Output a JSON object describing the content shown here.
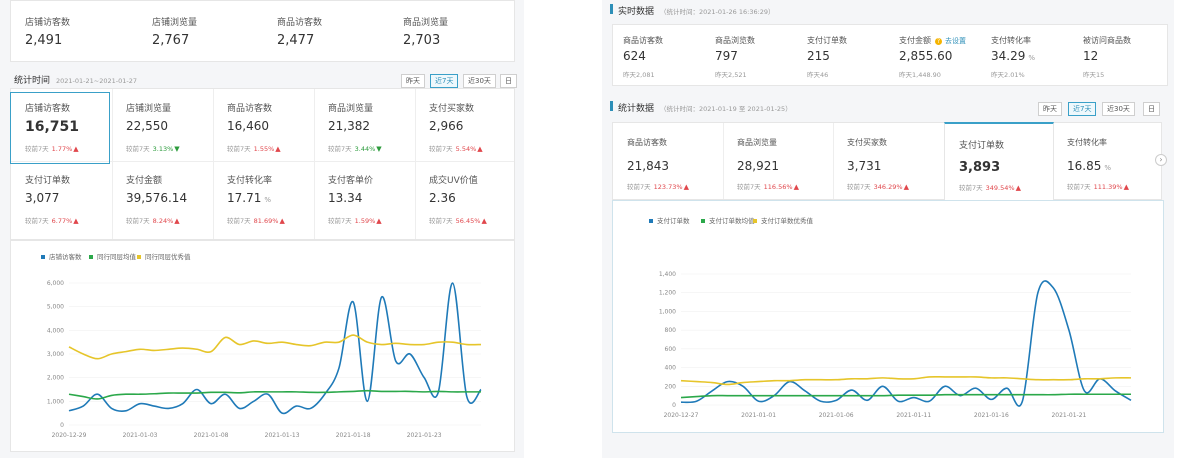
{
  "left": {
    "top_stats": [
      {
        "label": "店铺访客数",
        "value": "2,491"
      },
      {
        "label": "店铺浏览量",
        "value": "2,767"
      },
      {
        "label": "商品访客数",
        "value": "2,477"
      },
      {
        "label": "商品浏览量",
        "value": "2,703"
      }
    ],
    "section_title": "统计时间",
    "section_range": "2021-01-21~2021-01-27",
    "range_buttons": [
      "昨天",
      "近7天",
      "近30天",
      "日"
    ],
    "active_button_index": 1,
    "metrics_row1": [
      {
        "label": "店铺访客数",
        "value": "16,751",
        "compare_label": "较前7天",
        "compare_value": "1.77%",
        "direction": "up"
      },
      {
        "label": "店铺浏览量",
        "value": "22,550",
        "compare_label": "较前7天",
        "compare_value": "3.13%",
        "direction": "down"
      },
      {
        "label": "商品访客数",
        "value": "16,460",
        "compare_label": "较前7天",
        "compare_value": "1.55%",
        "direction": "up"
      },
      {
        "label": "商品浏览量",
        "value": "21,382",
        "compare_label": "较前7天",
        "compare_value": "3.44%",
        "direction": "down"
      },
      {
        "label": "支付买家数",
        "value": "2,966",
        "compare_label": "较前7天",
        "compare_value": "5.54%",
        "direction": "up"
      }
    ],
    "metrics_row2": [
      {
        "label": "支付订单数",
        "value": "3,077",
        "compare_label": "较前7天",
        "compare_value": "6.77%",
        "direction": "up"
      },
      {
        "label": "支付金额",
        "value": "39,576.14",
        "compare_label": "较前7天",
        "compare_value": "8.24%",
        "direction": "up"
      },
      {
        "label": "支付转化率",
        "value": "17.71",
        "unit": "%",
        "compare_label": "较前7天",
        "compare_value": "81.69%",
        "direction": "up"
      },
      {
        "label": "支付客单价",
        "value": "13.34",
        "compare_label": "较前7天",
        "compare_value": "1.59%",
        "direction": "up"
      },
      {
        "label": "成交UV价值",
        "value": "2.36",
        "compare_label": "较前7天",
        "compare_value": "56.45%",
        "direction": "up"
      }
    ]
  },
  "right": {
    "realtime_title": "实时数据",
    "realtime_time": "（统计时间：2021-01-26 16:36:29）",
    "realtime_stats": [
      {
        "label": "商品访客数",
        "value": "624",
        "yesterday": "昨天2,081"
      },
      {
        "label": "商品浏览数",
        "value": "797",
        "yesterday": "昨天2,521"
      },
      {
        "label": "支付订单数",
        "value": "215",
        "yesterday": "昨天46"
      },
      {
        "label": "支付金额",
        "value": "2,855.60",
        "yesterday": "昨天1,448.90",
        "link": "去设置"
      },
      {
        "label": "支付转化率",
        "value": "34.29",
        "unit": "%",
        "yesterday": "昨天2.01%"
      },
      {
        "label": "被访问商品数",
        "value": "12",
        "yesterday": "昨天15"
      }
    ],
    "section_title": "统计数据",
    "section_range": "（统计时间：2021-01-19 至 2021-01-25）",
    "range_buttons": [
      "昨天",
      "近7天",
      "近30天",
      "日"
    ],
    "active_button_index": 1,
    "metrics": [
      {
        "label": "商品访客数",
        "value": "21,843",
        "compare_label": "较前7天",
        "compare_value": "123.73%",
        "direction": "up"
      },
      {
        "label": "商品浏览量",
        "value": "28,921",
        "compare_label": "较前7天",
        "compare_value": "116.56%",
        "direction": "up"
      },
      {
        "label": "支付买家数",
        "value": "3,731",
        "compare_label": "较前7天",
        "compare_value": "346.29%",
        "direction": "up"
      },
      {
        "label": "支付订单数",
        "value": "3,893",
        "compare_label": "较前7天",
        "compare_value": "349.54%",
        "direction": "up"
      },
      {
        "label": "支付转化率",
        "value": "16.85",
        "unit": "%",
        "compare_label": "较前7天",
        "compare_value": "111.39%",
        "direction": "up"
      }
    ],
    "next_arrow": "chevron-right-icon"
  },
  "chart_data": [
    {
      "type": "line",
      "legend": [
        "店铺访客数",
        "同行同层均值",
        "同行同层优秀值"
      ],
      "x_ticks": [
        "2020-12-29",
        "2021-01-03",
        "2021-01-08",
        "2021-01-13",
        "2021-01-18",
        "2021-01-23"
      ],
      "y_ticks": [
        "0",
        "1,000",
        "2,000",
        "3,000",
        "4,000",
        "5,000",
        "6,000"
      ],
      "ylim": [
        0,
        6000
      ],
      "x": [
        "2020-12-29",
        "2020-12-30",
        "2020-12-31",
        "2021-01-01",
        "2021-01-02",
        "2021-01-03",
        "2021-01-04",
        "2021-01-05",
        "2021-01-06",
        "2021-01-07",
        "2021-01-08",
        "2021-01-09",
        "2021-01-10",
        "2021-01-11",
        "2021-01-12",
        "2021-01-13",
        "2021-01-14",
        "2021-01-15",
        "2021-01-16",
        "2021-01-17",
        "2021-01-18",
        "2021-01-19",
        "2021-01-20",
        "2021-01-21",
        "2021-01-22",
        "2021-01-23",
        "2021-01-24",
        "2021-01-25",
        "2021-01-26",
        "2021-01-27"
      ],
      "series": [
        {
          "name": "店铺访客数",
          "color": "#1f7ab8",
          "values": [
            600,
            800,
            1300,
            700,
            600,
            900,
            800,
            700,
            900,
            1500,
            900,
            1300,
            700,
            1000,
            1300,
            500,
            800,
            700,
            1300,
            2400,
            5200,
            1000,
            5400,
            2700,
            3000,
            2000,
            1400,
            6000,
            1200,
            1500
          ]
        },
        {
          "name": "同行同层均值",
          "color": "#2ba84a",
          "values": [
            1300,
            1200,
            1100,
            1250,
            1300,
            1300,
            1320,
            1350,
            1350,
            1350,
            1380,
            1380,
            1360,
            1400,
            1400,
            1400,
            1400,
            1380,
            1380,
            1400,
            1420,
            1450,
            1420,
            1420,
            1420,
            1400,
            1420,
            1400,
            1400,
            1400
          ]
        },
        {
          "name": "同行同层优秀值",
          "color": "#e6c52a",
          "values": [
            3300,
            3000,
            2800,
            3000,
            3100,
            3200,
            3150,
            3200,
            3250,
            3200,
            3100,
            3700,
            3400,
            3550,
            3450,
            3500,
            3400,
            3350,
            3500,
            3500,
            3800,
            3500,
            3400,
            3450,
            3400,
            3400,
            3500,
            3500,
            3400,
            3400
          ]
        }
      ]
    },
    {
      "type": "line",
      "legend": [
        "支付订单数",
        "支付订单数均值",
        "支付订单数优秀值"
      ],
      "x_ticks": [
        "2020-12-27",
        "2021-01-01",
        "2021-01-06",
        "2021-01-11",
        "2021-01-16",
        "2021-01-21"
      ],
      "y_ticks": [
        "0",
        "200",
        "400",
        "600",
        "800",
        "1,000",
        "1,200",
        "1,400"
      ],
      "ylim": [
        0,
        1400
      ],
      "x": [
        "2020-12-27",
        "2020-12-28",
        "2020-12-29",
        "2020-12-30",
        "2020-12-31",
        "2021-01-01",
        "2021-01-02",
        "2021-01-03",
        "2021-01-04",
        "2021-01-05",
        "2021-01-06",
        "2021-01-07",
        "2021-01-08",
        "2021-01-09",
        "2021-01-10",
        "2021-01-11",
        "2021-01-12",
        "2021-01-13",
        "2021-01-14",
        "2021-01-15",
        "2021-01-16",
        "2021-01-17",
        "2021-01-18",
        "2021-01-19",
        "2021-01-20",
        "2021-01-21",
        "2021-01-22",
        "2021-01-23",
        "2021-01-24",
        "2021-01-25"
      ],
      "series": [
        {
          "name": "支付订单数",
          "color": "#1f7ab8",
          "values": [
            30,
            40,
            150,
            250,
            200,
            40,
            100,
            250,
            150,
            40,
            50,
            160,
            50,
            200,
            40,
            80,
            40,
            200,
            100,
            180,
            60,
            180,
            40,
            1200,
            1250,
            800,
            150,
            280,
            150,
            50
          ]
        },
        {
          "name": "支付订单数均值",
          "color": "#2ba84a",
          "values": [
            80,
            90,
            100,
            100,
            100,
            100,
            100,
            100,
            100,
            100,
            100,
            100,
            100,
            100,
            105,
            105,
            105,
            110,
            110,
            110,
            110,
            110,
            110,
            110,
            110,
            115,
            115,
            115,
            115,
            115
          ]
        },
        {
          "name": "支付订单数优秀值",
          "color": "#e6c52a",
          "values": [
            260,
            250,
            240,
            220,
            240,
            250,
            260,
            260,
            270,
            270,
            270,
            280,
            280,
            290,
            280,
            280,
            300,
            300,
            300,
            300,
            290,
            290,
            280,
            270,
            270,
            270,
            280,
            280,
            290,
            290
          ]
        }
      ]
    }
  ]
}
